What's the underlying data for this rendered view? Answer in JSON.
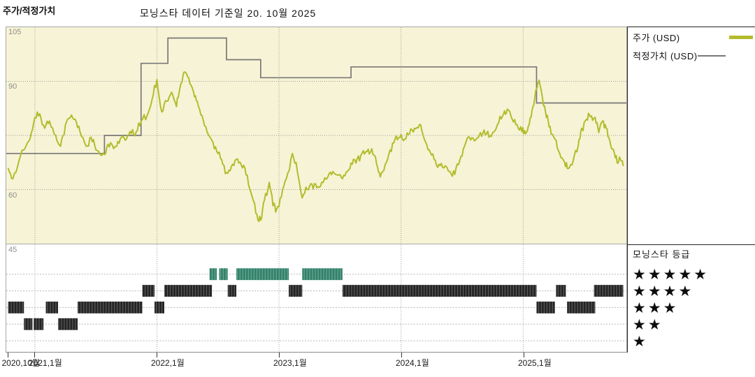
{
  "header": {
    "title": "주가/적정가치",
    "subtitle": "모닝스타 데이터 기준일 20. 10월 2025"
  },
  "legend": {
    "price_label": "주가 (USD)",
    "fair_value_label": "적정가치 (USD)"
  },
  "rating_panel": {
    "title": "모닝스타 등급",
    "rows": [
      "★★★★★",
      "★★★★",
      "★★★",
      "★★",
      "★"
    ]
  },
  "colors": {
    "price_line": "#b2bc2c",
    "fair_value_line": "#787878",
    "chart_bg": "#f7f3d6",
    "rating_5": "#33806a",
    "rating_5_stripe": "#74b09a",
    "rating_other": "#242424",
    "rating_other_stripe": "#666666",
    "grid": "#999999",
    "row_guide": "#b5b5b5"
  },
  "chart_data": {
    "type": "line",
    "title": "주가/적정가치",
    "as_of_note": "모닝스타 데이터 기준일 20. 10월 2025",
    "y_axis": {
      "range": [
        45,
        105
      ],
      "gridlines": [
        105,
        90,
        75,
        60,
        45
      ],
      "labeled_ticks": [
        105,
        90,
        60,
        45
      ]
    },
    "x_axis": {
      "ticks": [
        {
          "t": 2020.78,
          "label": "2020,10월"
        },
        {
          "t": 2021.0,
          "label": "2021,1월"
        },
        {
          "t": 2022.0,
          "label": "2022,1월"
        },
        {
          "t": 2023.0,
          "label": "2023,1월"
        },
        {
          "t": 2024.0,
          "label": "2024,1월"
        },
        {
          "t": 2025.0,
          "label": "2025,1월"
        }
      ]
    },
    "series": [
      {
        "name": "주가 (USD)",
        "type": "line",
        "color": "#b2bc2c",
        "points": [
          [
            2020.78,
            66
          ],
          [
            2020.82,
            63
          ],
          [
            2020.87,
            68
          ],
          [
            2020.92,
            71.5
          ],
          [
            2020.96,
            74
          ],
          [
            2021.0,
            80
          ],
          [
            2021.04,
            81
          ],
          [
            2021.08,
            77
          ],
          [
            2021.12,
            79
          ],
          [
            2021.17,
            75
          ],
          [
            2021.21,
            72
          ],
          [
            2021.25,
            78
          ],
          [
            2021.29,
            80
          ],
          [
            2021.33,
            79.5
          ],
          [
            2021.37,
            76
          ],
          [
            2021.42,
            72
          ],
          [
            2021.46,
            74.5
          ],
          [
            2021.5,
            71
          ],
          [
            2021.54,
            69.5
          ],
          [
            2021.58,
            70
          ],
          [
            2021.62,
            73
          ],
          [
            2021.67,
            72
          ],
          [
            2021.71,
            74.5
          ],
          [
            2021.75,
            74
          ],
          [
            2021.79,
            75.5
          ],
          [
            2021.83,
            76
          ],
          [
            2021.87,
            79
          ],
          [
            2021.92,
            80.5
          ],
          [
            2021.96,
            85
          ],
          [
            2022.0,
            90.5
          ],
          [
            2022.04,
            81.5
          ],
          [
            2022.08,
            84.5
          ],
          [
            2022.12,
            87
          ],
          [
            2022.16,
            83
          ],
          [
            2022.19,
            88.5
          ],
          [
            2022.22,
            92.5
          ],
          [
            2022.26,
            91
          ],
          [
            2022.3,
            87
          ],
          [
            2022.33,
            84.5
          ],
          [
            2022.37,
            80.5
          ],
          [
            2022.41,
            76
          ],
          [
            2022.46,
            73
          ],
          [
            2022.5,
            70
          ],
          [
            2022.54,
            67
          ],
          [
            2022.58,
            64.5
          ],
          [
            2022.62,
            67
          ],
          [
            2022.66,
            68.5
          ],
          [
            2022.7,
            66
          ],
          [
            2022.74,
            64
          ],
          [
            2022.78,
            58
          ],
          [
            2022.82,
            53
          ],
          [
            2022.85,
            51.5
          ],
          [
            2022.88,
            57
          ],
          [
            2022.92,
            62
          ],
          [
            2022.95,
            55.5
          ],
          [
            2022.98,
            54.5
          ],
          [
            2023.02,
            58
          ],
          [
            2023.06,
            63
          ],
          [
            2023.11,
            70
          ],
          [
            2023.15,
            65
          ],
          [
            2023.19,
            57.7
          ],
          [
            2023.23,
            60
          ],
          [
            2023.27,
            61.5
          ],
          [
            2023.31,
            60.5
          ],
          [
            2023.35,
            62
          ],
          [
            2023.4,
            63.5
          ],
          [
            2023.44,
            65
          ],
          [
            2023.48,
            64
          ],
          [
            2023.52,
            63
          ],
          [
            2023.56,
            65
          ],
          [
            2023.6,
            67
          ],
          [
            2023.64,
            68.5
          ],
          [
            2023.68,
            70
          ],
          [
            2023.72,
            70.5
          ],
          [
            2023.76,
            71.3
          ],
          [
            2023.8,
            67
          ],
          [
            2023.83,
            63.5
          ],
          [
            2023.87,
            67
          ],
          [
            2023.91,
            71
          ],
          [
            2023.95,
            74
          ],
          [
            2023.99,
            74.5
          ],
          [
            2024.03,
            74
          ],
          [
            2024.07,
            75.5
          ],
          [
            2024.11,
            77
          ],
          [
            2024.15,
            78
          ],
          [
            2024.19,
            74
          ],
          [
            2024.23,
            71
          ],
          [
            2024.27,
            68.5
          ],
          [
            2024.31,
            67
          ],
          [
            2024.35,
            66
          ],
          [
            2024.4,
            65
          ],
          [
            2024.44,
            64.2
          ],
          [
            2024.48,
            68
          ],
          [
            2024.52,
            72
          ],
          [
            2024.56,
            74.5
          ],
          [
            2024.6,
            73.5
          ],
          [
            2024.64,
            75
          ],
          [
            2024.68,
            76.5
          ],
          [
            2024.72,
            74.5
          ],
          [
            2024.76,
            76
          ],
          [
            2024.8,
            78.5
          ],
          [
            2024.84,
            81
          ],
          [
            2024.87,
            82.3
          ],
          [
            2024.91,
            79.5
          ],
          [
            2024.95,
            78
          ],
          [
            2024.99,
            76
          ],
          [
            2025.02,
            75.5
          ],
          [
            2025.05,
            78
          ],
          [
            2025.08,
            83
          ],
          [
            2025.11,
            88
          ],
          [
            2025.13,
            90.3
          ],
          [
            2025.16,
            85
          ],
          [
            2025.19,
            80
          ],
          [
            2025.22,
            77.5
          ],
          [
            2025.26,
            74
          ],
          [
            2025.3,
            70
          ],
          [
            2025.34,
            67.5
          ],
          [
            2025.37,
            65.8
          ],
          [
            2025.41,
            68
          ],
          [
            2025.45,
            72
          ],
          [
            2025.48,
            77
          ],
          [
            2025.52,
            79.5
          ],
          [
            2025.55,
            80.2
          ],
          [
            2025.59,
            80
          ],
          [
            2025.62,
            75.8
          ],
          [
            2025.65,
            79
          ],
          [
            2025.68,
            77
          ],
          [
            2025.71,
            73.5
          ],
          [
            2025.74,
            71
          ],
          [
            2025.77,
            67.5
          ],
          [
            2025.79,
            69
          ],
          [
            2025.82,
            66.5
          ]
        ]
      },
      {
        "name": "적정가치 (USD)",
        "type": "step",
        "color": "#787878",
        "points": [
          [
            2020.78,
            70
          ],
          [
            2021.57,
            75
          ],
          [
            2021.87,
            95
          ],
          [
            2022.09,
            102
          ],
          [
            2022.57,
            96
          ],
          [
            2022.85,
            91
          ],
          [
            2023.59,
            94
          ],
          [
            2025.11,
            84
          ]
        ],
        "end_t": 2025.85
      }
    ],
    "ratings_legend_rows": [
      5,
      4,
      3,
      2,
      1
    ],
    "ratings": [
      {
        "stars": 3,
        "from": 2020.78,
        "to": 2020.91
      },
      {
        "stars": 2,
        "from": 2020.91,
        "to": 2020.98
      },
      {
        "stars": 2,
        "from": 2020.99,
        "to": 2021.07
      },
      {
        "stars": 3,
        "from": 2021.09,
        "to": 2021.19
      },
      {
        "stars": 2,
        "from": 2021.19,
        "to": 2021.35
      },
      {
        "stars": 3,
        "from": 2021.35,
        "to": 2021.88
      },
      {
        "stars": 4,
        "from": 2021.88,
        "to": 2021.98
      },
      {
        "stars": 3,
        "from": 2021.98,
        "to": 2022.06
      },
      {
        "stars": 4,
        "from": 2022.06,
        "to": 2022.45
      },
      {
        "stars": 5,
        "from": 2022.43,
        "to": 2022.49
      },
      {
        "stars": 5,
        "from": 2022.51,
        "to": 2022.58
      },
      {
        "stars": 4,
        "from": 2022.58,
        "to": 2022.65
      },
      {
        "stars": 5,
        "from": 2022.65,
        "to": 2023.08
      },
      {
        "stars": 4,
        "from": 2023.08,
        "to": 2023.19
      },
      {
        "stars": 5,
        "from": 2023.19,
        "to": 2023.52
      },
      {
        "stars": 4,
        "from": 2023.52,
        "to": 2025.11
      },
      {
        "stars": 3,
        "from": 2025.11,
        "to": 2025.26
      },
      {
        "stars": 4,
        "from": 2025.27,
        "to": 2025.35
      },
      {
        "stars": 3,
        "from": 2025.36,
        "to": 2025.59
      },
      {
        "stars": 4,
        "from": 2025.58,
        "to": 2025.82
      }
    ]
  }
}
